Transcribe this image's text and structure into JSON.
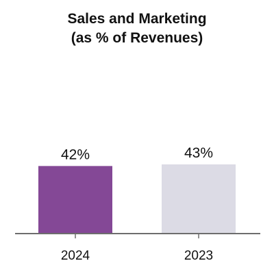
{
  "chart_data": {
    "type": "bar",
    "title_lines": [
      "Sales and Marketing",
      "(as % of Revenues)"
    ],
    "categories": [
      "2024",
      "2023"
    ],
    "values": [
      42,
      43
    ],
    "data_labels": [
      "42%",
      "43%"
    ],
    "bar_colors": [
      "#844896",
      "#dcdbe5"
    ],
    "axis_color": "#6d6d6d",
    "ylim": [
      0,
      43
    ],
    "xlabel": "",
    "ylabel": "",
    "grid": false,
    "legend": "none"
  }
}
